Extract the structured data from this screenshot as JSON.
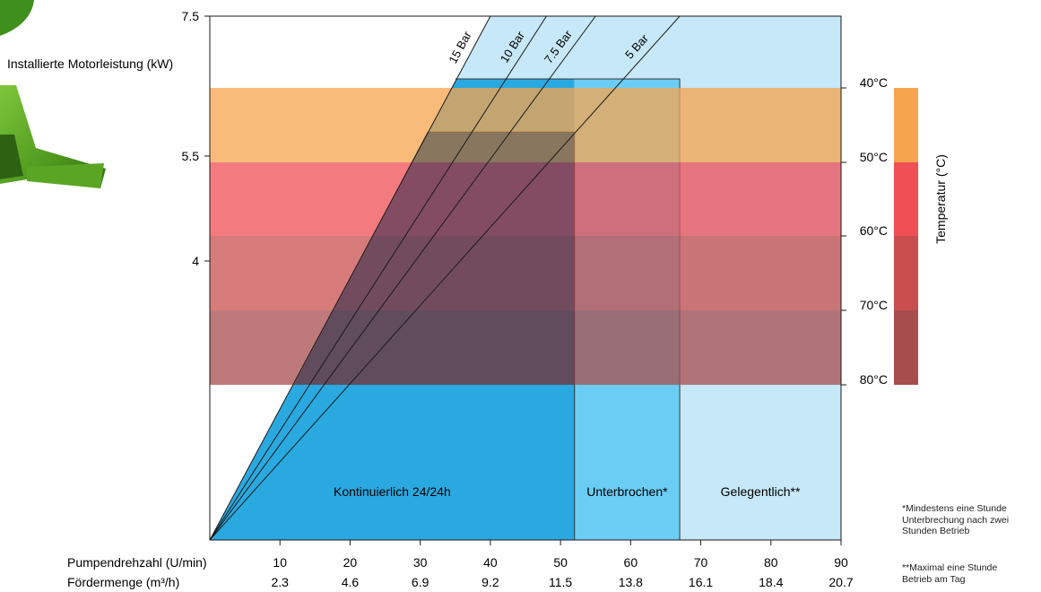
{
  "chart_data": {
    "type": "area",
    "title": "",
    "y_axis": {
      "label": "Installierte Motorleistung (kW)",
      "ticks": [
        "7.5",
        "5.5",
        "4"
      ]
    },
    "x_axis": {
      "speed_label": "Pumpendrehzahl (U/min)",
      "speed_values": [
        10,
        20,
        30,
        40,
        50,
        60,
        70,
        80,
        90
      ],
      "flow_label": "Fördermenge (m³/h)",
      "flow_values": [
        "2.3",
        "4.6",
        "6.9",
        "9.2",
        "11.5",
        "13.8",
        "16.1",
        "18.4",
        "20.7"
      ],
      "range": [
        0,
        90
      ]
    },
    "operating_zones": [
      {
        "name": "Kontinuierlich 24/24h",
        "from_speed": 0,
        "to_speed": 52,
        "color": "#2aa9e0"
      },
      {
        "name": "Unterbrochen*",
        "from_speed": 52,
        "to_speed": 67,
        "color": "#6ccdf4"
      },
      {
        "name": "Gelegentlich**",
        "from_speed": 67,
        "to_speed": 90,
        "color": "#c6e8f8"
      }
    ],
    "pressure_lines": [
      {
        "name": "15 Bar",
        "top_speed": 40
      },
      {
        "name": "10 Bar",
        "top_speed": 48
      },
      {
        "name": "7.5 Bar",
        "top_speed": 55
      },
      {
        "name": "5 Bar",
        "top_speed": 67
      }
    ],
    "temperature_axis": {
      "label": "Temperatur (°C)",
      "ticks": [
        "40°C",
        "50°C",
        "60°C",
        "70°C",
        "80°C"
      ],
      "band_colors": [
        "#f7a44e",
        "#ef4f55",
        "#c94f4e",
        "#a84d4e"
      ]
    },
    "notes": [
      "*Mindestens eine Stunde Unterbrechung nach zwei Stunden Betrieb",
      "**Maximal eine Stunde Betrieb am Tag"
    ]
  }
}
